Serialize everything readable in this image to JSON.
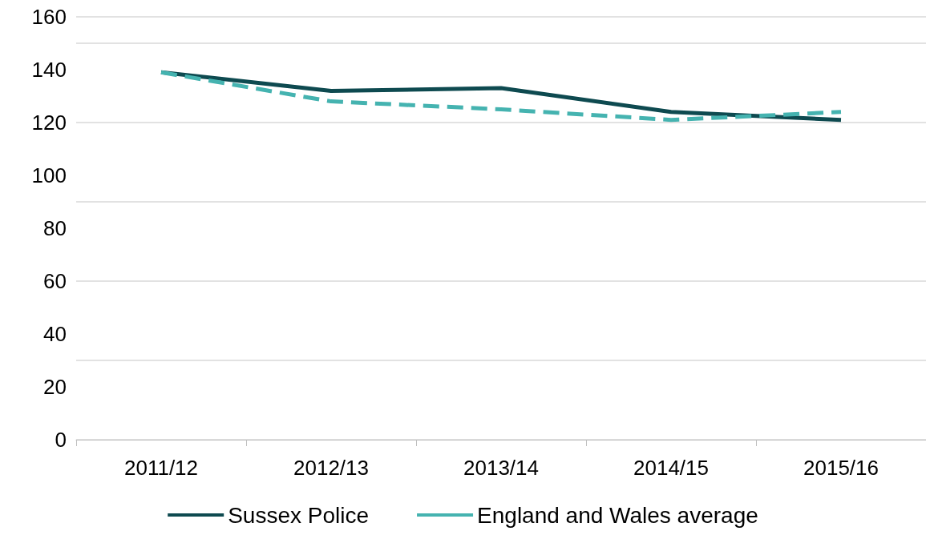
{
  "chart_data": {
    "type": "line",
    "categories": [
      "2011/12",
      "2012/13",
      "2013/14",
      "2014/15",
      "2015/16"
    ],
    "series": [
      {
        "name": "Sussex Police",
        "color": "#0e4a50",
        "values": [
          139,
          132,
          133,
          124,
          121
        ],
        "line_style": "solid"
      },
      {
        "name": "England and Wales average",
        "color": "#45b3b0",
        "values": [
          139,
          128,
          125,
          121,
          124
        ],
        "line_style": "dashed"
      }
    ],
    "ylim": [
      0,
      160
    ],
    "yticks": [
      0,
      20,
      40,
      60,
      80,
      100,
      120,
      140,
      160
    ],
    "grid": "y",
    "legend": "bottom",
    "marker": "none"
  }
}
